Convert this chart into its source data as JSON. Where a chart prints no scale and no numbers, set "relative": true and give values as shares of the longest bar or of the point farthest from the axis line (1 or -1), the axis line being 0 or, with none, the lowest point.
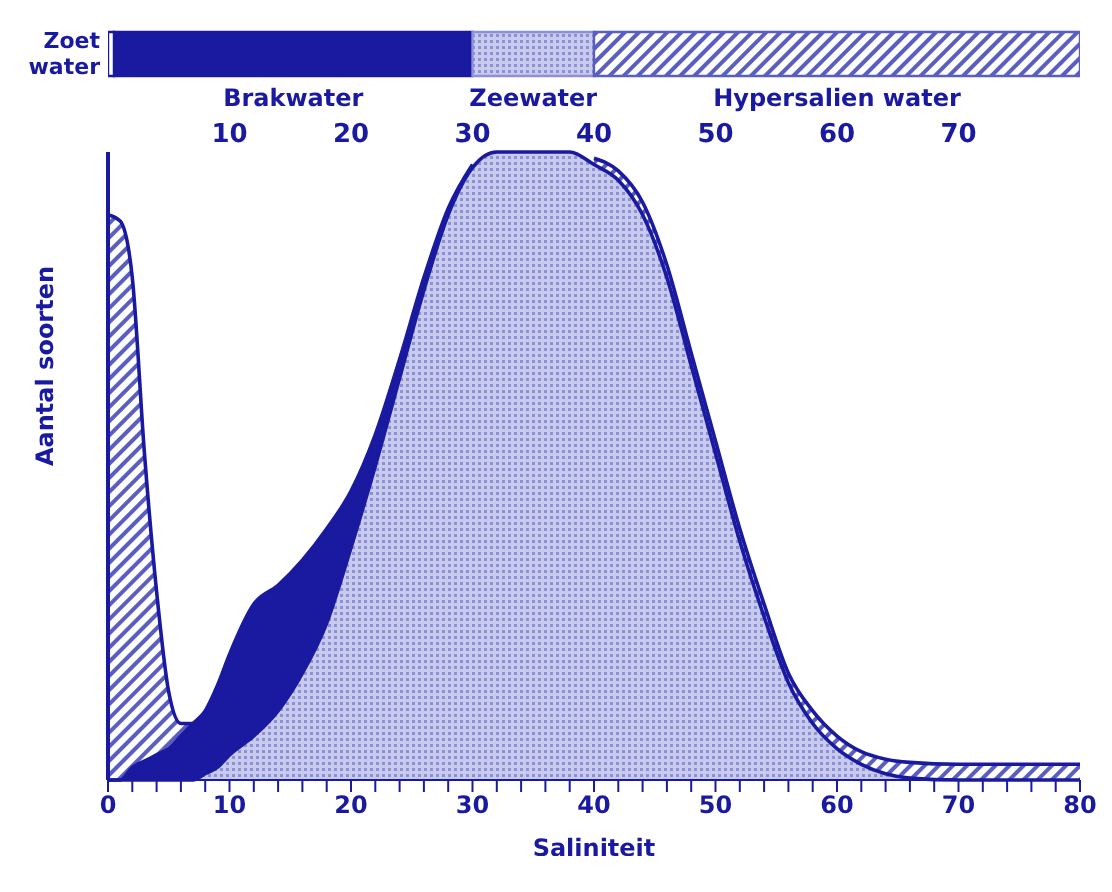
{
  "chart_data": [
    {
      "type": "bar",
      "orientation": "horizontal",
      "stacked": true,
      "categories": [
        null
      ],
      "series": [
        {
          "name": "Zoet water",
          "color": "#ffffff",
          "values": [
            0.5
          ]
        },
        {
          "name": "Brakwater",
          "color": "#1a1aa0",
          "values": [
            29.5
          ]
        },
        {
          "name": "Zeewater",
          "color": "#8c90d4",
          "values": [
            10
          ]
        },
        {
          "name": "Hypersalien water",
          "color": "#5a5ec0",
          "values": [
            40
          ]
        }
      ],
      "xlim": [
        0,
        80
      ],
      "xticks": [
        10,
        20,
        30,
        40,
        50,
        60,
        70
      ],
      "tick_labels": "x"
    },
    {
      "type": "area",
      "xlabel": "Saliniteit",
      "ylabel": "Aantal soorten",
      "relative": true,
      "x": [
        0,
        1,
        2,
        3,
        4,
        5,
        6,
        7,
        8,
        9,
        10,
        12,
        14,
        16,
        18,
        20,
        22,
        24,
        26,
        28,
        30,
        32,
        35,
        38,
        40,
        42,
        44,
        46,
        48,
        50,
        52,
        54,
        56,
        58,
        60,
        62,
        64,
        66,
        70,
        75,
        80
      ],
      "series": [
        {
          "color": "#5a5ec0",
          "values": [
            0.9,
            0.89,
            0.8,
            0.52,
            0.3,
            0.14,
            0.09,
            0.09,
            null,
            null,
            null,
            null,
            null,
            null,
            null,
            null,
            null,
            null,
            null,
            null,
            null,
            null,
            null,
            null,
            0.99,
            0.97,
            0.92,
            0.82,
            0.68,
            0.54,
            0.4,
            0.28,
            0.17,
            0.11,
            0.07,
            0.045,
            0.033,
            0.028,
            0.025,
            0.025,
            0.025
          ]
        },
        {
          "color": "#1a1aa0",
          "values": [
            0,
            0,
            0.02,
            0.03,
            0.04,
            0.05,
            0.07,
            0.09,
            0.11,
            0.15,
            0.2,
            0.28,
            0.31,
            0.35,
            0.4,
            0.46,
            0.55,
            0.67,
            0.8,
            0.91,
            0.98,
            null,
            null,
            null,
            null,
            null,
            null,
            null,
            null,
            null,
            null,
            null,
            null,
            null,
            null,
            null,
            null,
            null,
            null,
            null,
            null
          ]
        },
        {
          "color": "#8c90d4",
          "values": [
            0,
            0,
            0,
            0,
            0,
            0,
            0,
            0,
            0.01,
            0.02,
            0.04,
            0.07,
            0.11,
            0.17,
            0.25,
            0.37,
            0.5,
            0.64,
            0.78,
            0.9,
            0.975,
            1,
            1,
            1,
            0.98,
            0.955,
            0.9,
            0.8,
            0.66,
            0.52,
            0.38,
            0.26,
            0.155,
            0.09,
            0.05,
            0.025,
            0.01,
            0.003,
            0,
            0,
            0
          ]
        }
      ],
      "xlim": [
        0,
        80
      ],
      "xticks": [
        0,
        {
          "value": 2,
          "label": null
        },
        {
          "value": 4,
          "label": null
        },
        {
          "value": 6,
          "label": null
        },
        {
          "value": 8,
          "label": null
        },
        10,
        {
          "value": 12,
          "label": null
        },
        {
          "value": 14,
          "label": null
        },
        {
          "value": 16,
          "label": null
        },
        {
          "value": 18,
          "label": null
        },
        20,
        {
          "value": 22,
          "label": null
        },
        {
          "value": 24,
          "label": null
        },
        {
          "value": 26,
          "label": null
        },
        {
          "value": 28,
          "label": null
        },
        30,
        {
          "value": 32,
          "label": null
        },
        {
          "value": 34,
          "label": null
        },
        {
          "value": 36,
          "label": null
        },
        {
          "value": 38,
          "label": null
        },
        40,
        {
          "value": 42,
          "label": null
        },
        {
          "value": 44,
          "label": null
        },
        {
          "value": 46,
          "label": null
        },
        {
          "value": 48,
          "label": null
        },
        50,
        {
          "value": 52,
          "label": null
        },
        {
          "value": 54,
          "label": null
        },
        {
          "value": 56,
          "label": null
        },
        {
          "value": 58,
          "label": null
        },
        60,
        {
          "value": 62,
          "label": null
        },
        {
          "value": 64,
          "label": null
        },
        {
          "value": 66,
          "label": null
        },
        {
          "value": 68,
          "label": null
        },
        70,
        {
          "value": 72,
          "label": null
        },
        {
          "value": 74,
          "label": null
        },
        {
          "value": 76,
          "label": null
        },
        {
          "value": 78,
          "label": null
        },
        80
      ]
    }
  ]
}
